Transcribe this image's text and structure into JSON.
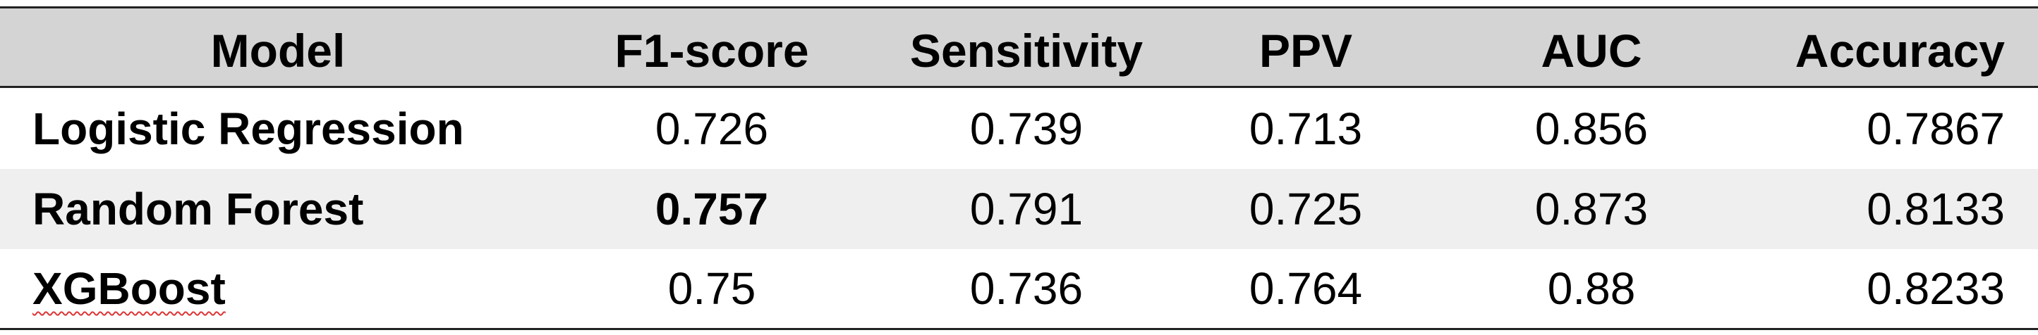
{
  "table": {
    "header": [
      "Model",
      "F1-score",
      "Sensitivity",
      "PPV",
      "AUC",
      "Accuracy"
    ],
    "rows": [
      [
        "Logistic Regression",
        "0.726",
        "0.739",
        "0.713",
        "0.856",
        "0.7867"
      ],
      [
        "Random Forest",
        "0.757",
        "0.791",
        "0.725",
        "0.873",
        "0.8133"
      ],
      [
        "XGBoost",
        "0.75",
        "0.736",
        "0.764",
        "0.88",
        "0.8233"
      ]
    ]
  }
}
